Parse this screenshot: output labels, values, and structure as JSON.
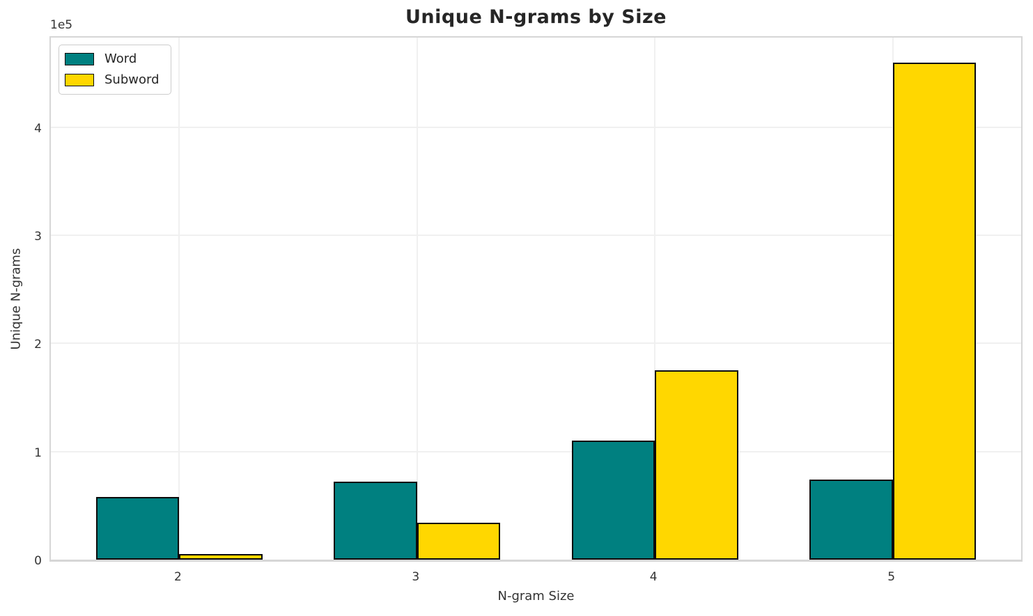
{
  "chart_data": {
    "type": "bar",
    "title": "Unique N-grams by Size",
    "xlabel": "N-gram Size",
    "ylabel": "Unique N-grams",
    "offset_text": "1e5",
    "categories": [
      "2",
      "3",
      "4",
      "5"
    ],
    "series": [
      {
        "name": "Word",
        "color": "#008080",
        "values": [
          58000,
          72000,
          110000,
          74000
        ]
      },
      {
        "name": "Subword",
        "color": "#FFD700",
        "values": [
          5000,
          34000,
          175000,
          460000
        ]
      }
    ],
    "ylim": [
      0,
      483000
    ],
    "yticks": [
      0,
      100000,
      200000,
      300000,
      400000
    ],
    "ytick_labels": [
      "0",
      "1",
      "2",
      "3",
      "4"
    ],
    "grid": true,
    "legend_position": "upper left",
    "bar_edge_color": "#0a0a0a",
    "bar_group_width_fraction": 0.7,
    "colors": {
      "grid": "#f0f0f0",
      "spine": "#d6d6d6",
      "text": "#333333",
      "title_text": "#262626",
      "background": "#ffffff"
    }
  }
}
